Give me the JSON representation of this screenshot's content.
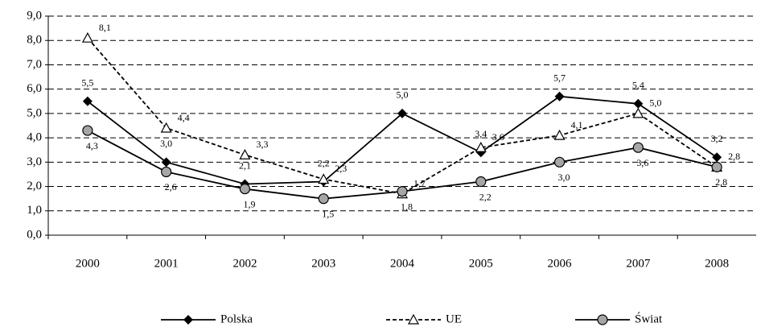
{
  "chart_data": {
    "type": "line",
    "categories": [
      "2000",
      "2001",
      "2002",
      "2003",
      "2004",
      "2005",
      "2006",
      "2007",
      "2008"
    ],
    "series": [
      {
        "name": "Polska",
        "color": "#000000",
        "marker": "diamond",
        "dash": false,
        "values": [
          5.5,
          3.0,
          2.1,
          2.2,
          5.0,
          3.4,
          5.7,
          5.4,
          3.2
        ],
        "value_labels": [
          "5,5",
          "3,0",
          "2,1",
          "2,2",
          "5,0",
          "3,4",
          "5,7",
          "5,4",
          "3,2"
        ]
      },
      {
        "name": "UE",
        "color": "#000000",
        "marker": "triangle",
        "dash": true,
        "values": [
          8.1,
          4.4,
          3.3,
          2.3,
          1.7,
          3.6,
          4.1,
          5.0,
          2.8
        ],
        "value_labels": [
          "8,1",
          "4,4",
          "3,3",
          "2,3",
          "1,7",
          "3,6",
          "4,1",
          "5,0",
          "2,8"
        ]
      },
      {
        "name": "Świat",
        "color": "#000000",
        "marker": "circle",
        "dash": false,
        "values": [
          4.3,
          2.6,
          1.9,
          1.5,
          1.8,
          2.2,
          3.0,
          3.6,
          2.8
        ],
        "value_labels": [
          "4,3",
          "2,6",
          "1,9",
          "1,5",
          "1,8",
          "2,2",
          "3,0",
          "3,6",
          "2,8"
        ]
      }
    ],
    "ylim": [
      0,
      9
    ],
    "yticks": [
      {
        "value": 0,
        "label": "0,0"
      },
      {
        "value": 1,
        "label": "1,0"
      },
      {
        "value": 2,
        "label": "2,0"
      },
      {
        "value": 3,
        "label": "3,0"
      },
      {
        "value": 4,
        "label": "4,0"
      },
      {
        "value": 5,
        "label": "5,0"
      },
      {
        "value": 6,
        "label": "6,0"
      },
      {
        "value": 7,
        "label": "7,0"
      },
      {
        "value": 8,
        "label": "8,0"
      },
      {
        "value": 9,
        "label": "9,0"
      }
    ],
    "grid": true,
    "legend": "bottom"
  }
}
